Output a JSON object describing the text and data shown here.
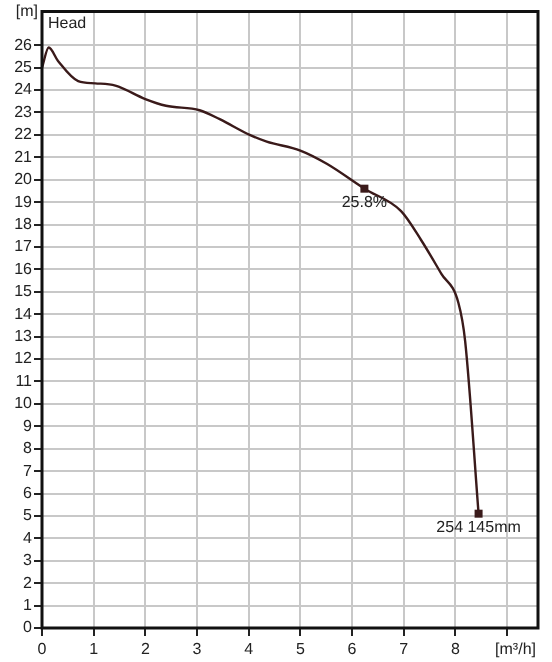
{
  "chart_data": {
    "type": "line",
    "xlabel": "[m³/h]",
    "ylabel": "[m]",
    "x": [
      0,
      0.13,
      0.31,
      0.7,
      1.03,
      1.42,
      2.0,
      2.4,
      3.05,
      3.44,
      4.02,
      4.35,
      5.0,
      5.52,
      6.24,
      6.95,
      7.34,
      7.73,
      8.06,
      8.19,
      8.45
    ],
    "series": [
      {
        "color": "#3a1a1a",
        "values": [
          25.0,
          25.9,
          25.3,
          24.4,
          24.3,
          24.2,
          23.6,
          23.3,
          23.1,
          22.7,
          22.0,
          21.7,
          21.3,
          20.7,
          19.6,
          18.6,
          17.3,
          15.8,
          14.5,
          12.8,
          5.1
        ]
      }
    ],
    "xlim": [
      0,
      9.6
    ],
    "xticks": [
      0,
      1,
      2,
      3,
      4,
      5,
      6,
      7,
      8,
      {
        "value": 9,
        "label": null
      }
    ],
    "ylim": [
      0,
      27.5
    ],
    "yticks": [
      0,
      1,
      2,
      3,
      4,
      5,
      6,
      7,
      8,
      9,
      10,
      11,
      12,
      13,
      14,
      15,
      16,
      17,
      18,
      19,
      20,
      21,
      22,
      23,
      24,
      25,
      26
    ],
    "grid": true,
    "legend": false,
    "marker": "none",
    "line_style": "solid",
    "annotations": [
      "Head",
      {
        "text": "25.8%",
        "x": 6.24,
        "y": 19.6
      },
      {
        "text": "254 145mm",
        "x": 8.45,
        "y": 5.1
      }
    ]
  }
}
